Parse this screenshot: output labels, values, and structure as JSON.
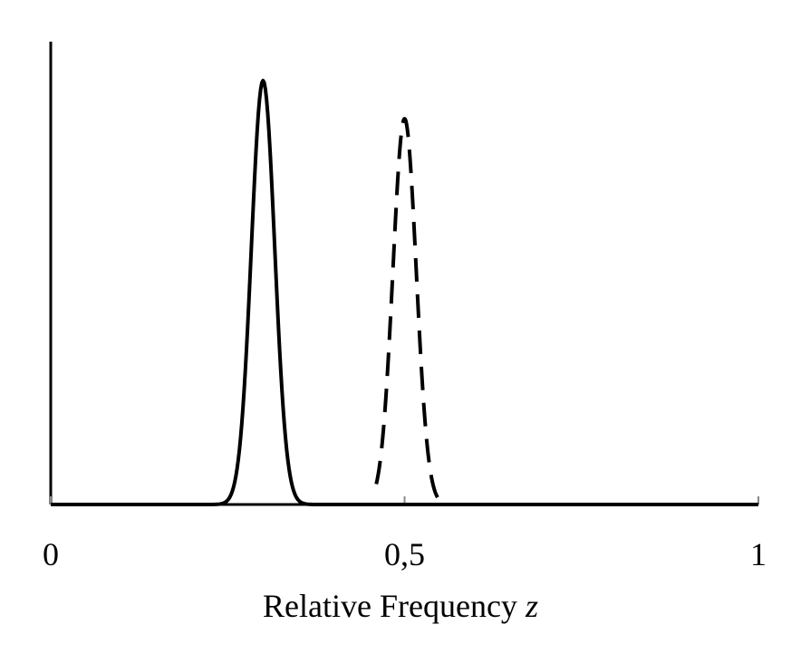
{
  "chart_data": {
    "type": "line",
    "xlabel": "Relative Frequency",
    "xlabel_var": "z",
    "xlim": [
      0,
      1
    ],
    "x_ticks": [
      {
        "value": 0,
        "label": "0"
      },
      {
        "value": 0.5,
        "label": "0,5"
      },
      {
        "value": 1,
        "label": "1"
      }
    ],
    "y_axis": {
      "ticks": false,
      "labels": false
    },
    "series": [
      {
        "style": "solid",
        "color": "#000000",
        "mean": 0.3,
        "sd": 0.0165,
        "peak": 1.0,
        "x_range": [
          0,
          1
        ]
      },
      {
        "style": "dashed",
        "color": "#000000",
        "mean": 0.5,
        "sd": 0.0165,
        "peak": 0.91,
        "x_range": [
          0.46,
          0.55
        ]
      }
    ],
    "grid": false,
    "legend": "none"
  }
}
